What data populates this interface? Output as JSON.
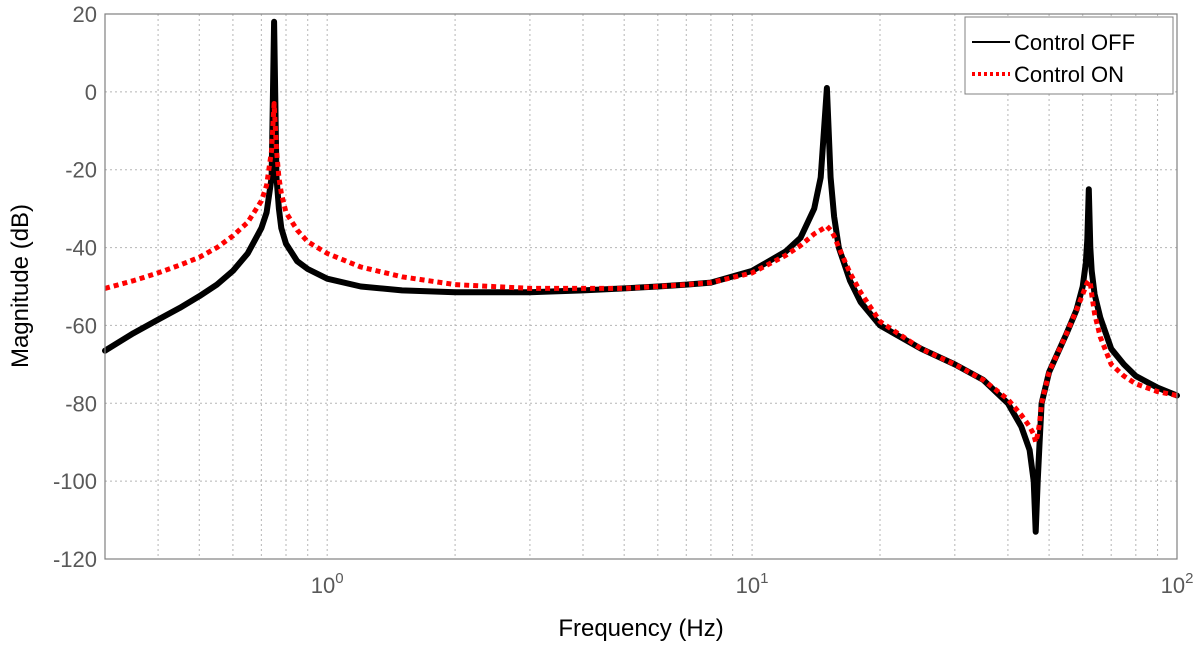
{
  "chart_data": {
    "type": "line",
    "xscale": "log",
    "xlim": [
      0.3,
      100
    ],
    "ylim": [
      -120,
      20
    ],
    "xlabel": "Frequency (Hz)",
    "ylabel": "Magnitude (dB)",
    "grid": true,
    "legend_position": "top-right",
    "y_ticks": [
      20,
      0,
      -20,
      -40,
      -60,
      -80,
      -100,
      -120
    ],
    "x_ticks": [
      {
        "base": "10",
        "exp": "0",
        "value": 1
      },
      {
        "base": "10",
        "exp": "1",
        "value": 10
      },
      {
        "base": "10",
        "exp": "2",
        "value": 100
      }
    ],
    "series": [
      {
        "name": "Control OFF",
        "color": "#000000",
        "style": "solid",
        "x": [
          0.3,
          0.35,
          0.4,
          0.45,
          0.5,
          0.55,
          0.6,
          0.65,
          0.7,
          0.72,
          0.74,
          0.75,
          0.76,
          0.77,
          0.78,
          0.8,
          0.85,
          0.9,
          1.0,
          1.2,
          1.5,
          2,
          3,
          4,
          5,
          6,
          7,
          8,
          10,
          12,
          13,
          14,
          14.5,
          15,
          15.3,
          15.6,
          16,
          17,
          18,
          20,
          25,
          30,
          35,
          40,
          43,
          45,
          46,
          46.5,
          47,
          47.5,
          48,
          50,
          55,
          58,
          60,
          61,
          61.5,
          62,
          62.5,
          63,
          64,
          66,
          70,
          75,
          80,
          90,
          100
        ],
        "y": [
          -66.5,
          -62,
          -58.5,
          -55.5,
          -52.5,
          -49.5,
          -46,
          -41.5,
          -35,
          -31,
          -22,
          18,
          -22,
          -30,
          -35,
          -39,
          -43.5,
          -45.5,
          -48,
          -50,
          -51,
          -51.5,
          -51.5,
          -51,
          -50.5,
          -50,
          -49.5,
          -49,
          -46,
          -41,
          -37.5,
          -30,
          -22,
          1,
          -22,
          -32,
          -40,
          -48.5,
          -54,
          -60,
          -66,
          -70,
          -74,
          -80,
          -86,
          -92,
          -100,
          -113,
          -100,
          -90,
          -80,
          -72,
          -62,
          -56,
          -50,
          -44,
          -38,
          -25,
          -40,
          -46,
          -52,
          -58,
          -66,
          -70,
          -73,
          -76,
          -78
        ]
      },
      {
        "name": "Control ON",
        "color": "#ff0000",
        "style": "dashed",
        "x": [
          0.3,
          0.35,
          0.4,
          0.45,
          0.5,
          0.55,
          0.6,
          0.65,
          0.7,
          0.72,
          0.74,
          0.75,
          0.76,
          0.77,
          0.78,
          0.8,
          0.85,
          0.9,
          1.0,
          1.2,
          1.5,
          2,
          3,
          4,
          5,
          6,
          7,
          8,
          10,
          12,
          13,
          14,
          14.5,
          15,
          15.3,
          15.6,
          16,
          17,
          18,
          20,
          25,
          30,
          35,
          40,
          43,
          45,
          46,
          46.5,
          47,
          47.5,
          48,
          50,
          55,
          58,
          60,
          61,
          61.5,
          62,
          62.5,
          63,
          64,
          66,
          70,
          75,
          80,
          90,
          100
        ],
        "y": [
          -50.5,
          -48.5,
          -46.5,
          -44.5,
          -42.5,
          -40,
          -37,
          -33.5,
          -28,
          -24,
          -15,
          -3,
          -15,
          -22,
          -26,
          -31,
          -35.5,
          -38.5,
          -41.5,
          -45,
          -47.5,
          -49.5,
          -50.5,
          -50.5,
          -50.5,
          -50,
          -49.5,
          -49,
          -46.5,
          -42,
          -39.5,
          -36.5,
          -35.5,
          -34.5,
          -35.5,
          -37,
          -40,
          -46.5,
          -51.5,
          -59,
          -66,
          -70,
          -74,
          -79,
          -83,
          -86,
          -88,
          -90,
          -88,
          -85,
          -80,
          -72,
          -62,
          -56,
          -52,
          -50,
          -49,
          -48.5,
          -49,
          -52,
          -57,
          -63,
          -70,
          -73,
          -75,
          -77,
          -78
        ]
      }
    ]
  }
}
